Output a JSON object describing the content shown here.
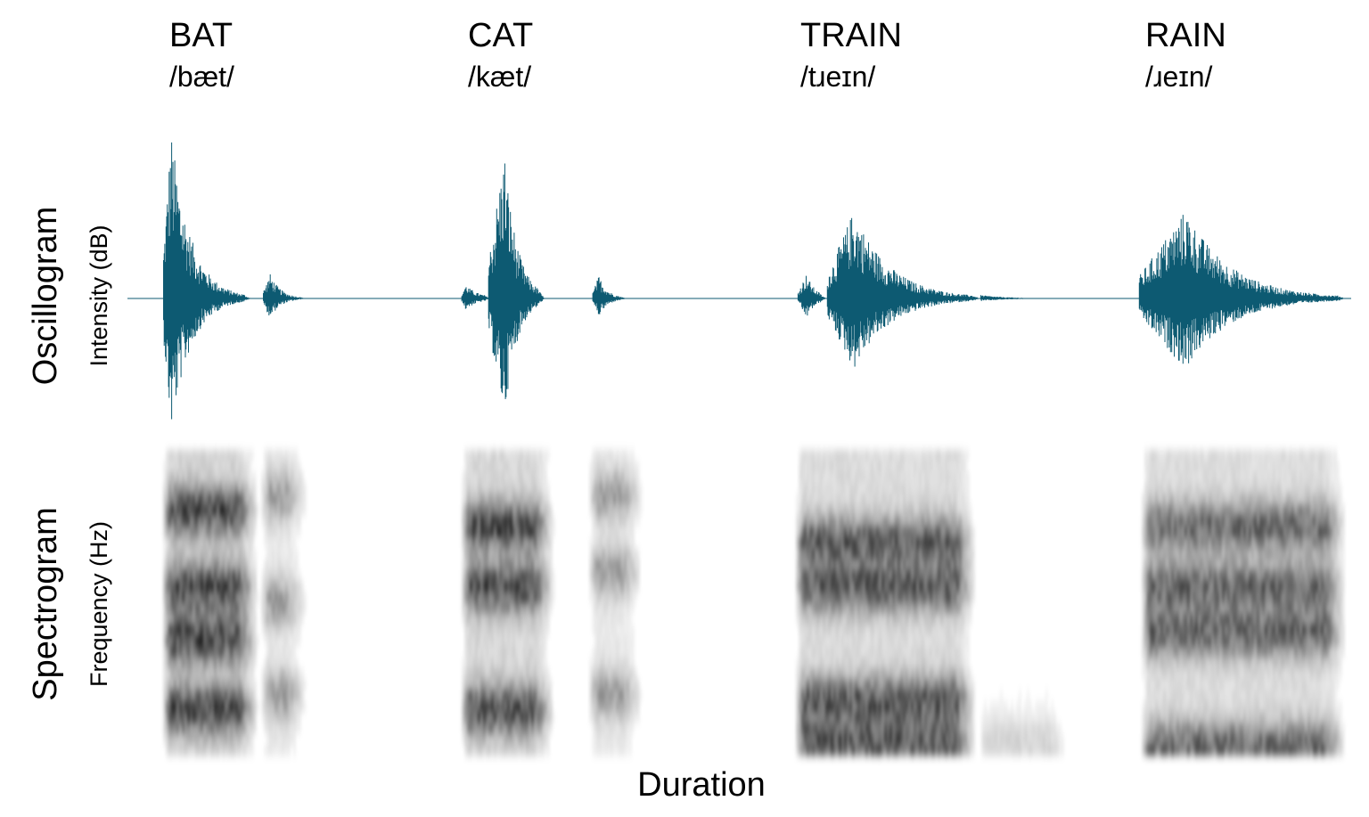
{
  "words": [
    {
      "word": "BAT",
      "ipa": "/bæt/"
    },
    {
      "word": "CAT",
      "ipa": "/kæt/"
    },
    {
      "word": "TRAIN",
      "ipa": "/tɹeɪn/"
    },
    {
      "word": "RAIN",
      "ipa": "/ɹeɪn/"
    }
  ],
  "oscillogram": {
    "title": "Oscillogram",
    "axis_label": "Intensity (dB)"
  },
  "spectrogram": {
    "title": "Spectrogram",
    "axis_label": "Frequency (Hz)"
  },
  "x_axis_label": "Duration"
}
